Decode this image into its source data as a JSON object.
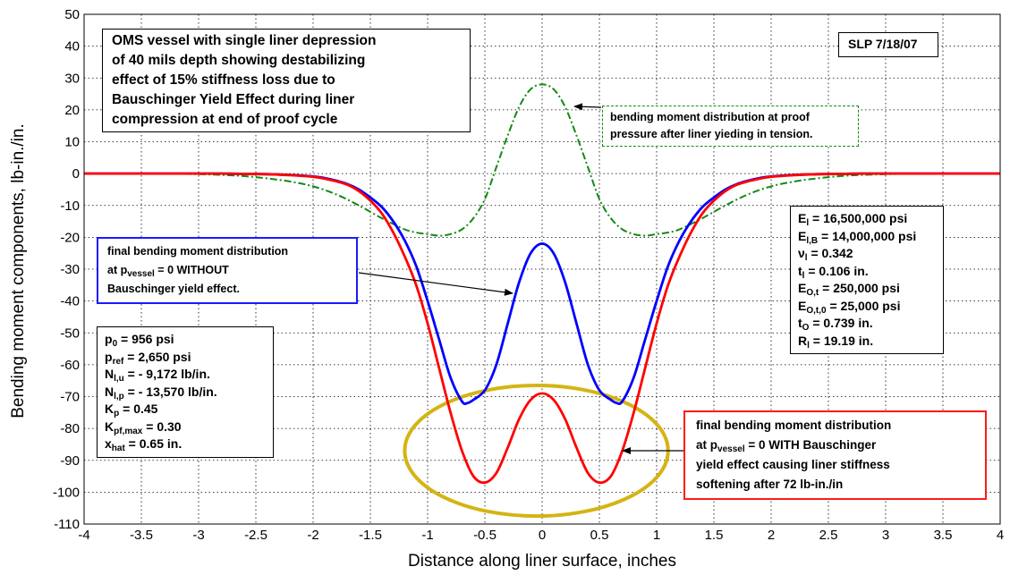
{
  "chart_data": {
    "type": "line",
    "xlabel": "Distance along liner surface, inches",
    "ylabel": "Bending moment components, lb-in./in.",
    "xlim": [
      -4,
      4
    ],
    "ylim": [
      -110,
      50
    ],
    "grid": true,
    "x_ticks": [
      "-4",
      "-3.5",
      "-3",
      "-2.5",
      "-2",
      "-1.5",
      "-1",
      "-0.5",
      "0",
      "0.5",
      "1",
      "1.5",
      "2",
      "2.5",
      "3",
      "3.5",
      "4"
    ],
    "y_ticks": [
      "50",
      "40",
      "30",
      "20",
      "10",
      "0",
      "-10",
      "-20",
      "-30",
      "-40",
      "-50",
      "-60",
      "-70",
      "-80",
      "-90",
      "-100",
      "-110"
    ],
    "series": [
      {
        "color": "#ff0000",
        "style": "solid",
        "x": [
          0,
          0.1,
          0.2,
          0.3,
          0.4,
          0.5,
          0.6,
          0.7,
          0.8,
          0.9,
          1.0,
          1.1,
          1.2,
          1.3,
          1.4,
          1.5,
          1.6,
          1.7,
          1.8,
          1.9,
          2.0,
          2.2,
          2.4,
          2.6,
          2.8,
          3.0,
          3.3,
          3.6,
          4.0
        ],
        "y": [
          -69,
          -71,
          -77,
          -86,
          -94,
          -97,
          -95,
          -87,
          -75,
          -61,
          -47,
          -35,
          -26,
          -18.5,
          -12.5,
          -8.5,
          -5.5,
          -3.5,
          -2.4,
          -1.6,
          -1.0,
          -0.5,
          -0.2,
          -0.1,
          0,
          0,
          0,
          0,
          0
        ]
      },
      {
        "color": "#0000ff",
        "style": "solid",
        "x": [
          0,
          0.1,
          0.2,
          0.3,
          0.4,
          0.5,
          0.6,
          0.65,
          0.7,
          0.8,
          0.9,
          1.0,
          1.1,
          1.2,
          1.3,
          1.4,
          1.5,
          1.6,
          1.7,
          1.8,
          1.9,
          2.0,
          2.2,
          2.4,
          2.6,
          2.8,
          3.0,
          3.3,
          3.6,
          4.0
        ],
        "y": [
          -22,
          -25,
          -34,
          -47,
          -60,
          -68,
          -71,
          -72,
          -71.5,
          -64,
          -52,
          -40,
          -29,
          -21,
          -15,
          -10.5,
          -7.5,
          -5,
          -3.3,
          -2.2,
          -1.4,
          -0.9,
          -0.4,
          -0.2,
          -0.1,
          0,
          0,
          0,
          0,
          0
        ]
      },
      {
        "color": "#138a13",
        "style": "dashdot",
        "x": [
          0,
          0.1,
          0.2,
          0.3,
          0.4,
          0.5,
          0.6,
          0.7,
          0.8,
          0.9,
          1.0,
          1.1,
          1.2,
          1.4,
          1.6,
          1.8,
          2.0,
          2.2,
          2.4,
          2.6,
          2.8,
          3.0,
          3.3,
          3.6,
          4.0
        ],
        "y": [
          28,
          26.5,
          21,
          12,
          2,
          -8,
          -14,
          -17.5,
          -19,
          -19.5,
          -19,
          -18.5,
          -17.5,
          -14,
          -10,
          -6.5,
          -4,
          -2.5,
          -1.5,
          -0.8,
          -0.4,
          -0.2,
          0,
          0,
          0
        ]
      }
    ],
    "ellipse": {
      "color": "#d4b414",
      "cx": -0.05,
      "cy": -87,
      "rx": 1.15,
      "ry": 20.5
    },
    "annotations": {
      "title_lines": [
        "OMS vessel with single liner depression",
        "of 40 mils depth showing destabilizing",
        "effect of 15% stiffness loss due to",
        "Bauschinger Yield Effect during liner",
        "compression at end of proof cycle"
      ],
      "stamp": "SLP  7/18/07",
      "green_lines": [
        "bending moment distribution at proof",
        "pressure after liner yieding in tension."
      ],
      "blue": {
        "line1": "final bending moment distribution",
        "line2_pre": "at  p",
        "line2_sub": "vessel",
        "line2_post": " = 0  WITHOUT",
        "line3": "Bauschinger yield effect."
      },
      "red": {
        "line1": "final bending moment distribution",
        "line2_pre": "at  p",
        "line2_sub": "vessel",
        "line2_post": " = 0  WITH Bauschinger",
        "line3": "yield effect causing liner stiffness",
        "line4": "softening after 72 lb-in./in"
      },
      "left_params": [
        {
          "sym": "p",
          "sub": "0",
          "val": " = 956 psi"
        },
        {
          "sym": "p",
          "sub": "ref",
          "val": " = 2,650 psi"
        },
        {
          "sym": "N",
          "sub": "l,u",
          "val": " = - 9,172 lb/in."
        },
        {
          "sym": "N",
          "sub": "l,p",
          "val": " = - 13,570 lb/in."
        },
        {
          "sym": "K",
          "sub": "p",
          "val": " = 0.45"
        },
        {
          "sym": "K",
          "sub": "pf,max",
          "val": " = 0.30"
        },
        {
          "sym": "x",
          "sub": "hat",
          "val": " = 0.65 in."
        }
      ],
      "right_params": [
        {
          "sym": "E",
          "sub": "l",
          "val": " = 16,500,000 psi"
        },
        {
          "sym": "E",
          "sub": "l,B",
          "val": " = 14,000,000 psi"
        },
        {
          "sym": "ν",
          "sub": "l",
          "val": " = 0.342"
        },
        {
          "sym": "t",
          "sub": "l",
          "val": " = 0.106 in."
        },
        {
          "sym": "E",
          "sub": "O,t",
          "val": " = 250,000 psi"
        },
        {
          "sym": "E",
          "sub": "O,t,0",
          "val": " = 25,000 psi"
        },
        {
          "sym": "t",
          "sub": "O",
          "val": " = 0.739 in."
        },
        {
          "sym": "R",
          "sub": "l",
          "val": " = 19.19 in."
        }
      ]
    }
  }
}
